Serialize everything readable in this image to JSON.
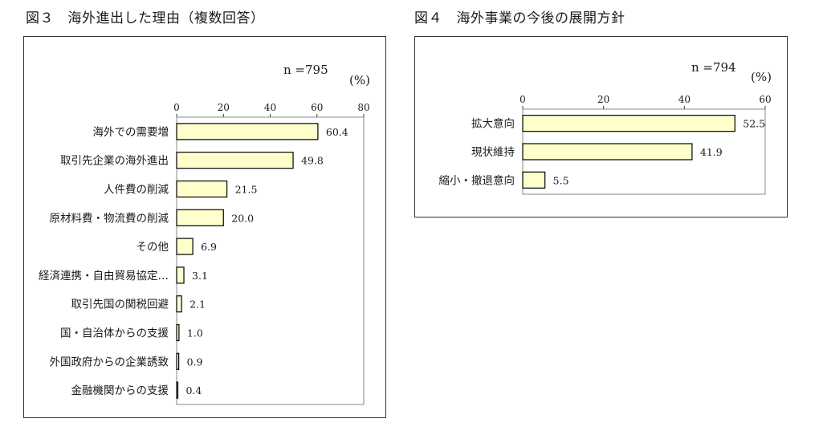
{
  "figures": [
    {
      "title": "図３　海外進出した理由（複数回答）"
    },
    {
      "title": "図４　海外事業の今後の展開方針"
    }
  ],
  "colors": {
    "bar_fill": "#ffffcc",
    "bar_stroke": "#000000",
    "frame": "#333333"
  },
  "chart_data": [
    {
      "type": "bar",
      "orientation": "horizontal",
      "title": "図３　海外進出した理由（複数回答）",
      "n_label": "n =795",
      "unit_label": "(%)",
      "xlim": [
        0,
        80
      ],
      "ticks": [
        0,
        20,
        40,
        60,
        80
      ],
      "categories": [
        "海外での需要増",
        "取引先企業の海外進出",
        "人件費の削減",
        "原材料費・物流費の削減",
        "その他",
        "経済連携・自由貿易協定…",
        "取引先国の関税回避",
        "国・自治体からの支援",
        "外国政府からの企業誘致",
        "金融機関からの支援"
      ],
      "values": [
        60.4,
        49.8,
        21.5,
        20.0,
        6.9,
        3.1,
        2.1,
        1.0,
        0.9,
        0.4
      ],
      "value_labels": [
        "60.4",
        "49.8",
        "21.5",
        "20.0",
        "6.9",
        "3.1",
        "2.1",
        "1.0",
        "0.9",
        "0.4"
      ],
      "grid": false
    },
    {
      "type": "bar",
      "orientation": "horizontal",
      "title": "図４　海外事業の今後の展開方針",
      "n_label": "n =794",
      "unit_label": "(%)",
      "xlim": [
        0,
        60
      ],
      "ticks": [
        0,
        20,
        40,
        60
      ],
      "categories": [
        "拡大意向",
        "現状維持",
        "縮小・撤退意向"
      ],
      "values": [
        52.5,
        41.9,
        5.5
      ],
      "value_labels": [
        "52.5",
        "41.9",
        "5.5"
      ],
      "grid": false
    }
  ]
}
